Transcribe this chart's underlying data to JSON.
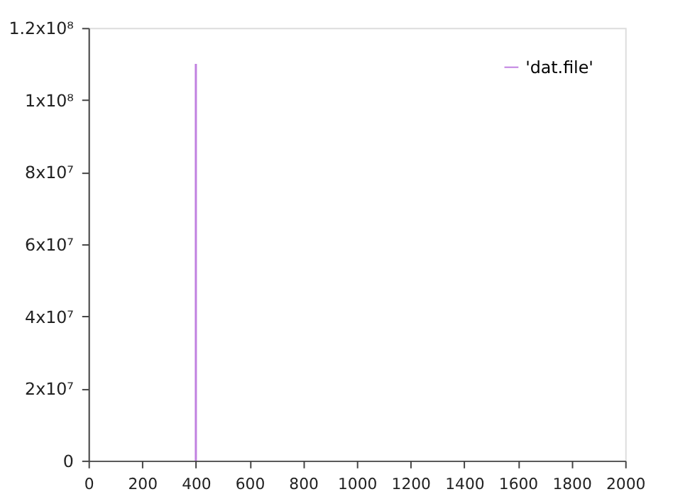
{
  "chart_data": {
    "type": "line",
    "x": [
      400,
      400
    ],
    "series": [
      {
        "name": "'dat.file'",
        "color": "#c080e0",
        "values": [
          0,
          110000000
        ]
      }
    ],
    "xlim": [
      0,
      2000
    ],
    "xticks": [
      0,
      200,
      400,
      600,
      800,
      1000,
      1200,
      1400,
      1600,
      1800,
      2000
    ],
    "ylim": [
      0,
      120000000
    ],
    "yticks": [
      0,
      {
        "value": 20000000,
        "label": "2x10⁷"
      },
      {
        "value": 40000000,
        "label": "4x10⁷"
      },
      {
        "value": 60000000,
        "label": "6x10⁷"
      },
      {
        "value": 80000000,
        "label": "8x10⁷"
      },
      {
        "value": 100000000,
        "label": "1x10⁸"
      },
      {
        "value": 120000000,
        "label": "1.2x10⁸"
      }
    ],
    "legend": "top right",
    "grid": false,
    "marker": "none",
    "line_style": "solid"
  }
}
